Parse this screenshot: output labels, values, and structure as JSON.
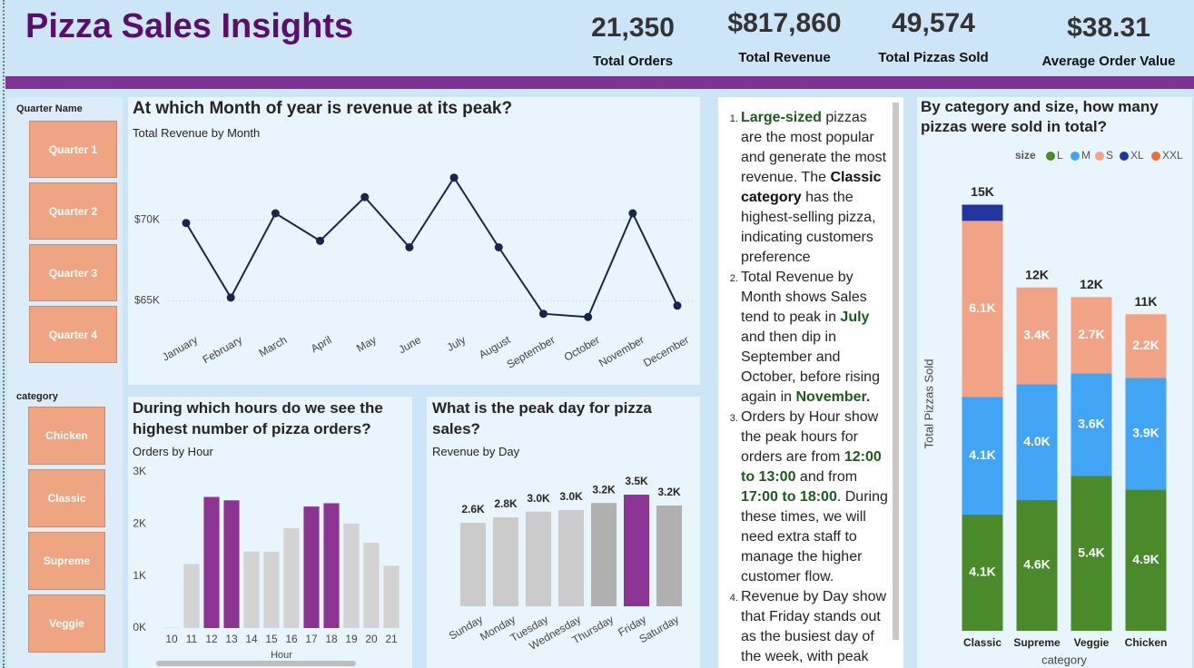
{
  "header": {
    "title": "Pizza Sales Insights"
  },
  "kpis": [
    {
      "value": "21,350",
      "label": "Total Orders"
    },
    {
      "value": "$817,860",
      "label": "Total Revenue"
    },
    {
      "value": "49,574",
      "label": "Total Pizzas Sold"
    },
    {
      "value": "$38.31",
      "label": "Average Order Value"
    }
  ],
  "slicers": [
    {
      "title": "Quarter Name",
      "items": [
        "Quarter 1",
        "Quarter 2",
        "Quarter 3",
        "Quarter 4"
      ]
    },
    {
      "title": "category",
      "items": [
        "Chicken",
        "Classic",
        "Supreme",
        "Veggie"
      ]
    }
  ],
  "insights": [
    {
      "runs": [
        {
          "text": "Large-sized",
          "style": "highlight"
        },
        {
          "text": " pizzas are the most popular and generate the most revenue. The "
        },
        {
          "text": "Classic category",
          "style": "bold"
        },
        {
          "text": " has the highest-selling pizza, indicating customers preference"
        }
      ]
    },
    {
      "runs": [
        {
          "text": "Total Revenue by Month shows Sales tend to peak in "
        },
        {
          "text": "July",
          "style": "highlight"
        },
        {
          "text": " and then dip in September and October, before rising again in "
        },
        {
          "text": "November.",
          "style": "highlight"
        }
      ]
    },
    {
      "runs": [
        {
          "text": "Orders by Hour show the peak hours for orders are from "
        },
        {
          "text": "12:00 to 13:00",
          "style": "highlight"
        },
        {
          "text": " and from "
        },
        {
          "text": "17:00 to 18:00",
          "style": "highlight"
        },
        {
          "text": ". During these times, we will need extra staff to manage the higher customer flow."
        }
      ]
    },
    {
      "runs": [
        {
          "text": "Revenue by Day show that Friday stands out as the busiest day of the week, with peak"
        }
      ]
    }
  ],
  "chart_data": [
    {
      "type": "line",
      "title": "At which Month of year is revenue at its peak?",
      "subtitle": "Total Revenue by Month",
      "categories": [
        "January",
        "February",
        "March",
        "April",
        "May",
        "June",
        "July",
        "August",
        "September",
        "October",
        "November",
        "December"
      ],
      "values": [
        69800,
        65200,
        70400,
        68700,
        71400,
        68300,
        72600,
        68300,
        64200,
        64000,
        70400,
        64700
      ],
      "color": "#1a2450",
      "ylim": [
        62000,
        73200
      ],
      "yticks": [
        {
          "value": 65000,
          "label": "$65K"
        },
        {
          "value": 70000,
          "label": "$70K"
        }
      ],
      "grid": true
    },
    {
      "type": "bar",
      "title": "During which hours do we see the highest number of pizza orders?",
      "subtitle": "Orders by Hour",
      "x_label": "Hour",
      "categories": [
        "10",
        "11",
        "12",
        "13",
        "14",
        "15",
        "16",
        "17",
        "18",
        "19",
        "20",
        "21"
      ],
      "values": [
        8,
        1231,
        2520,
        2455,
        1472,
        1468,
        1920,
        2336,
        2399,
        2009,
        1642,
        1198
      ],
      "colors": [
        "#d3d3d3",
        "#d3d3d3",
        "#8b3494",
        "#8b3494",
        "#d3d3d3",
        "#d3d3d3",
        "#d3d3d3",
        "#8b3494",
        "#8b3494",
        "#d3d3d3",
        "#d3d3d3",
        "#d3d3d3"
      ],
      "ylim": [
        0,
        3000
      ],
      "yticks": [
        {
          "value": 0,
          "label": "0K"
        },
        {
          "value": 1000,
          "label": "1K"
        },
        {
          "value": 2000,
          "label": "2K"
        },
        {
          "value": 3000,
          "label": "3K"
        }
      ]
    },
    {
      "type": "bar",
      "title": "What is the peak day for pizza sales?",
      "subtitle": "Revenue by Day",
      "categories": [
        "Sunday",
        "Monday",
        "Tuesday",
        "Wednesday",
        "Thursday",
        "Friday",
        "Saturday"
      ],
      "values": [
        2620,
        2790,
        2970,
        3020,
        3240,
        3500,
        3160
      ],
      "value_labels": [
        "2.6K",
        "2.8K",
        "3.0K",
        "3.0K",
        "3.2K",
        "3.5K",
        "3.2K"
      ],
      "colors": [
        "#cbcbcb",
        "#cbcbcb",
        "#cbcbcb",
        "#cbcbcb",
        "#b0b0b0",
        "#8b3494",
        "#b0b0b0"
      ],
      "ylim": [
        0,
        3900
      ]
    },
    {
      "type": "stacked_bar",
      "title": "By category and size, how many pizzas were sold in total?",
      "legend_title": "size",
      "y_label": "Total Pizzas Sold",
      "x_label": "category",
      "categories": [
        "Classic",
        "Supreme",
        "Veggie",
        "Chicken"
      ],
      "series": [
        {
          "name": "L",
          "color": "#4a8a2a",
          "values": [
            4057,
            4564,
            5403,
            4932
          ],
          "value_labels": [
            "4.1K",
            "4.6K",
            "5.4K",
            "4.9K"
          ]
        },
        {
          "name": "M",
          "color": "#41a4f5",
          "values": [
            4112,
            4046,
            3583,
            3894
          ],
          "value_labels": [
            "4.1K",
            "4.0K",
            "3.6K",
            "3.9K"
          ]
        },
        {
          "name": "S",
          "color": "#f2a385",
          "values": [
            6139,
            3377,
            2663,
            2224
          ],
          "value_labels": [
            "6.1K",
            "3.4K",
            "2.7K",
            "2.2K"
          ]
        },
        {
          "name": "XL",
          "color": "#2336a0",
          "values": [
            552,
            0,
            0,
            0
          ],
          "value_labels": [
            null,
            null,
            null,
            null
          ]
        },
        {
          "name": "XXL",
          "color": "#e8703e",
          "values": [
            28,
            0,
            0,
            0
          ],
          "value_labels": [
            null,
            null,
            null,
            null
          ]
        }
      ],
      "totals": [
        14888,
        11987,
        11649,
        11050
      ],
      "total_labels": [
        "15K",
        "12K",
        "12K",
        "11K"
      ],
      "ylim": [
        0,
        16000
      ]
    }
  ]
}
